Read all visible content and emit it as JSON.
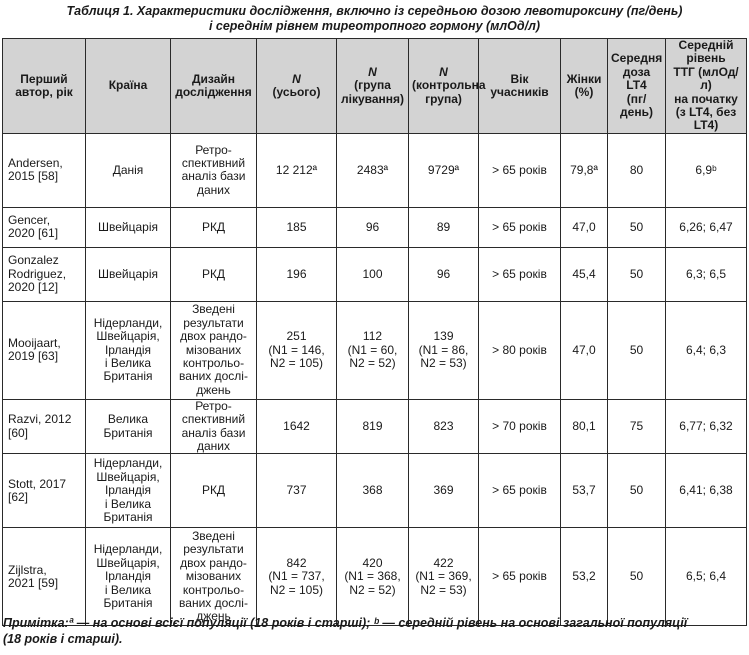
{
  "caption": {
    "line1": "Таблиця 1. Характеристики дослідження, включно із середньою дозою левотироксину (пг/день)",
    "line2": "і середнім рівнем тиреотропного гормону (млОд/л)"
  },
  "headers": [
    [
      "Перший",
      "автор, рік"
    ],
    [
      "Країна"
    ],
    [
      "Дизайн",
      "дослідження"
    ],
    [
      "N",
      "(усього)"
    ],
    [
      "N",
      "(група",
      "лікування)"
    ],
    [
      "N",
      "(контрольна",
      "група)"
    ],
    [
      "Вік",
      "учасників"
    ],
    [
      "Жінки",
      "(%)"
    ],
    [
      "Середня",
      "доза LT4",
      "(пг/день)"
    ],
    [
      "Середній рівень",
      "ТТГ (млОд/л)",
      "на початку",
      "(з LT4, без LT4)"
    ]
  ],
  "rows": [
    {
      "author": [
        "Andersen,",
        "2015 [58]"
      ],
      "country": [
        "Данія"
      ],
      "design": [
        "Ретро-",
        "спективний",
        "аналіз бази",
        "даних"
      ],
      "n_total": [
        "12 212ª"
      ],
      "n_treat": [
        "2483ª"
      ],
      "n_ctrl": [
        "9729ª"
      ],
      "age": "> 65 років",
      "women": "79,8ª",
      "dose": "80",
      "tsh": "6,9ᵇ"
    },
    {
      "author": [
        "Gencer,",
        "2020 [61]"
      ],
      "country": [
        "Швейцарія"
      ],
      "design": [
        "РКД"
      ],
      "n_total": [
        "185"
      ],
      "n_treat": [
        "96"
      ],
      "n_ctrl": [
        "89"
      ],
      "age": "> 65 років",
      "women": "47,0",
      "dose": "50",
      "tsh": "6,26; 6,47"
    },
    {
      "author": [
        "Gonzalez",
        "Rodriguez,",
        "2020 [12]"
      ],
      "country": [
        "Швейцарія"
      ],
      "design": [
        "РКД"
      ],
      "n_total": [
        "196"
      ],
      "n_treat": [
        "100"
      ],
      "n_ctrl": [
        "96"
      ],
      "age": "> 65 років",
      "women": "45,4",
      "dose": "50",
      "tsh": "6,3; 6,5"
    },
    {
      "author": [
        "Mooijaart,",
        "2019 [63]"
      ],
      "country": [
        "Нідерланди,",
        "Швейцарія,",
        "Ірландія",
        "і Велика",
        "Британія"
      ],
      "design": [
        "Зведені",
        "результати",
        "двох рандо-",
        "мізованих",
        "контрольо-",
        "ваних дослі-",
        "джень"
      ],
      "n_total": [
        "251",
        "(N1 = 146,",
        "N2 = 105)"
      ],
      "n_treat": [
        "112",
        "(N1 = 60,",
        "N2 = 52)"
      ],
      "n_ctrl": [
        "139",
        "(N1 = 86,",
        "N2 = 53)"
      ],
      "age": "> 80 років",
      "women": "47,0",
      "dose": "50",
      "tsh": "6,4; 6,3"
    },
    {
      "author": [
        "Razvi, 2012",
        "[60]"
      ],
      "country": [
        "Велика",
        "Британія"
      ],
      "design": [
        "Ретро-",
        "спективний",
        "аналіз бази",
        "даних"
      ],
      "n_total": [
        "1642"
      ],
      "n_treat": [
        "819"
      ],
      "n_ctrl": [
        "823"
      ],
      "age": "> 70 років",
      "women": "80,1",
      "dose": "75",
      "tsh": "6,77; 6,32"
    },
    {
      "author": [
        "Stott, 2017",
        "[62]"
      ],
      "country": [
        "Нідерланди,",
        "Швейцарія,",
        "Ірландія",
        "і Велика",
        "Британія"
      ],
      "design": [
        "РКД"
      ],
      "n_total": [
        "737"
      ],
      "n_treat": [
        "368"
      ],
      "n_ctrl": [
        "369"
      ],
      "age": "> 65 років",
      "women": "53,7",
      "dose": "50",
      "tsh": "6,41; 6,38"
    },
    {
      "author": [
        "Zijlstra,",
        "2021 [59]"
      ],
      "country": [
        "Нідерланди,",
        "Швейцарія,",
        "Ірландія",
        "і Велика",
        "Британія"
      ],
      "design": [
        "Зведені",
        "результати",
        "двох рандо-",
        "мізованих",
        "контрольо-",
        "ваних дослі-",
        "джень"
      ],
      "n_total": [
        "842",
        "(N1 = 737,",
        "N2 = 105)"
      ],
      "n_treat": [
        "420",
        "(N1 = 368,",
        "N2 = 52)"
      ],
      "n_ctrl": [
        "422",
        "(N1 = 369,",
        "N2 = 53)"
      ],
      "age": "> 65 років",
      "women": "53,2",
      "dose": "50",
      "tsh": "6,5; 6,4"
    }
  ],
  "note": {
    "line1": "Примітка:ª — на основі всієї популяції (18 років і старші); ᵇ — середній рівень на основі загальної популяції",
    "line2": "(18 років і старші)."
  }
}
